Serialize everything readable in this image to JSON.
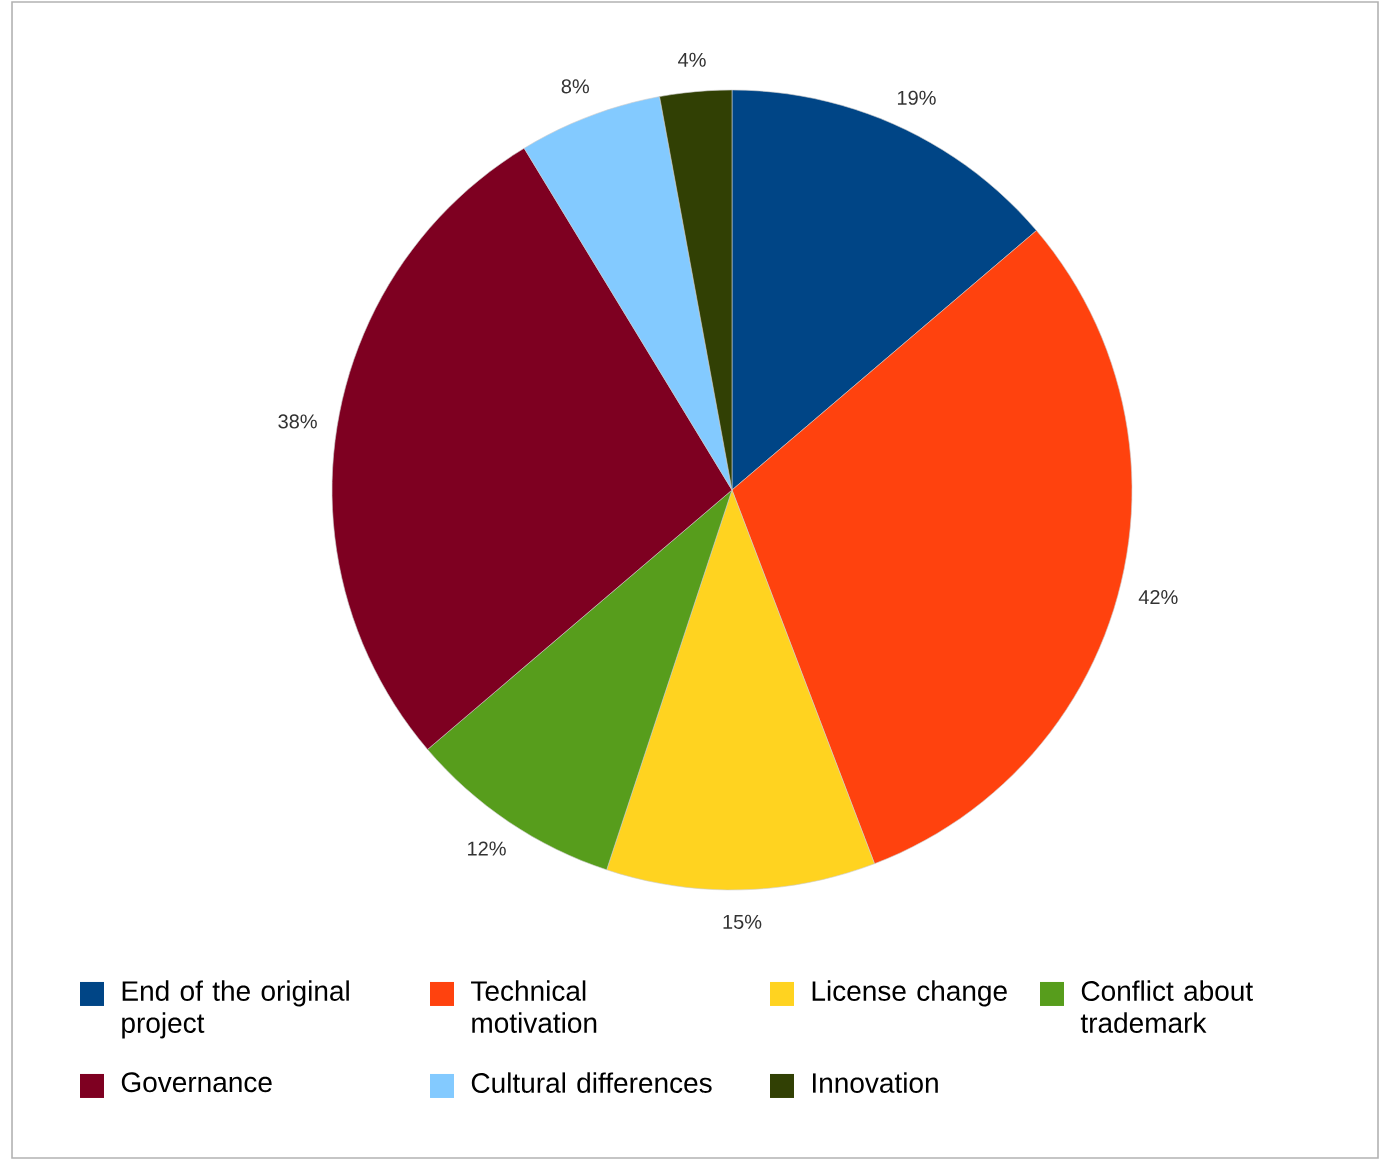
{
  "chart_data": {
    "type": "pie",
    "categories": [
      "End of the original project",
      "Technical motivation",
      "License change",
      "Conflict about trademark",
      "Governance",
      "Cultural differences",
      "Innovation"
    ],
    "values": [
      19,
      42,
      15,
      12,
      38,
      8,
      4
    ],
    "value_labels": [
      "19%",
      "42%",
      "15%",
      "12%",
      "38%",
      "8%",
      "4%"
    ],
    "colors": [
      "#004586",
      "#ff420e",
      "#ffd320",
      "#579d1c",
      "#7e0021",
      "#83caff",
      "#314004"
    ],
    "legend": "bottom"
  }
}
